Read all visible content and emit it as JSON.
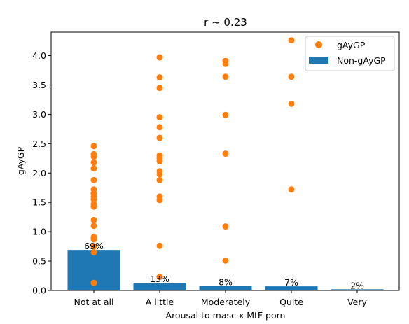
{
  "chart_data": {
    "type": "bar+scatter",
    "title": "r ~ 0.23",
    "xlabel": "Arousal to masc x MtF porn",
    "ylabel": "gAyGP",
    "categories": [
      "Not at all",
      "A little",
      "Moderately",
      "Quite",
      "Very"
    ],
    "ylim": [
      0,
      4.4
    ],
    "yticks": [
      "0.0",
      "0.5",
      "1.0",
      "1.5",
      "2.0",
      "2.5",
      "3.0",
      "3.5",
      "4.0"
    ],
    "bars": {
      "name": "Non-gAyGP",
      "color": "#1f77b4",
      "values": [
        0.69,
        0.13,
        0.08,
        0.07,
        0.02
      ],
      "labels": [
        "69%",
        "13%",
        "8%",
        "7%",
        "2%"
      ]
    },
    "scatter": {
      "name": "gAyGP",
      "color": "#ff7f0e",
      "points": [
        {
          "x": "Not at all",
          "y": 0.13
        },
        {
          "x": "Not at all",
          "y": 0.65
        },
        {
          "x": "Not at all",
          "y": 0.75
        },
        {
          "x": "Not at all",
          "y": 0.87
        },
        {
          "x": "Not at all",
          "y": 0.91
        },
        {
          "x": "Not at all",
          "y": 1.1
        },
        {
          "x": "Not at all",
          "y": 1.2
        },
        {
          "x": "Not at all",
          "y": 1.43
        },
        {
          "x": "Not at all",
          "y": 1.47
        },
        {
          "x": "Not at all",
          "y": 1.55
        },
        {
          "x": "Not at all",
          "y": 1.6
        },
        {
          "x": "Not at all",
          "y": 1.65
        },
        {
          "x": "Not at all",
          "y": 1.72
        },
        {
          "x": "Not at all",
          "y": 1.88
        },
        {
          "x": "Not at all",
          "y": 2.08
        },
        {
          "x": "Not at all",
          "y": 2.18
        },
        {
          "x": "Not at all",
          "y": 2.28
        },
        {
          "x": "Not at all",
          "y": 2.32
        },
        {
          "x": "Not at all",
          "y": 2.46
        },
        {
          "x": "A little",
          "y": 0.23
        },
        {
          "x": "A little",
          "y": 0.76
        },
        {
          "x": "A little",
          "y": 1.54
        },
        {
          "x": "A little",
          "y": 1.6
        },
        {
          "x": "A little",
          "y": 1.88
        },
        {
          "x": "A little",
          "y": 1.98
        },
        {
          "x": "A little",
          "y": 2.03
        },
        {
          "x": "A little",
          "y": 2.2
        },
        {
          "x": "A little",
          "y": 2.25
        },
        {
          "x": "A little",
          "y": 2.3
        },
        {
          "x": "A little",
          "y": 2.6
        },
        {
          "x": "A little",
          "y": 2.78
        },
        {
          "x": "A little",
          "y": 2.95
        },
        {
          "x": "A little",
          "y": 3.45
        },
        {
          "x": "A little",
          "y": 3.63
        },
        {
          "x": "A little",
          "y": 3.97
        },
        {
          "x": "Moderately",
          "y": 0.51
        },
        {
          "x": "Moderately",
          "y": 1.09
        },
        {
          "x": "Moderately",
          "y": 2.33
        },
        {
          "x": "Moderately",
          "y": 2.99
        },
        {
          "x": "Moderately",
          "y": 3.64
        },
        {
          "x": "Moderately",
          "y": 3.86
        },
        {
          "x": "Moderately",
          "y": 3.91
        },
        {
          "x": "Quite",
          "y": 1.72
        },
        {
          "x": "Quite",
          "y": 3.18
        },
        {
          "x": "Quite",
          "y": 3.64
        },
        {
          "x": "Quite",
          "y": 4.26
        }
      ]
    },
    "legend": {
      "placement": "top-right",
      "entries": [
        "gAyGP",
        "Non-gAyGP"
      ]
    }
  }
}
